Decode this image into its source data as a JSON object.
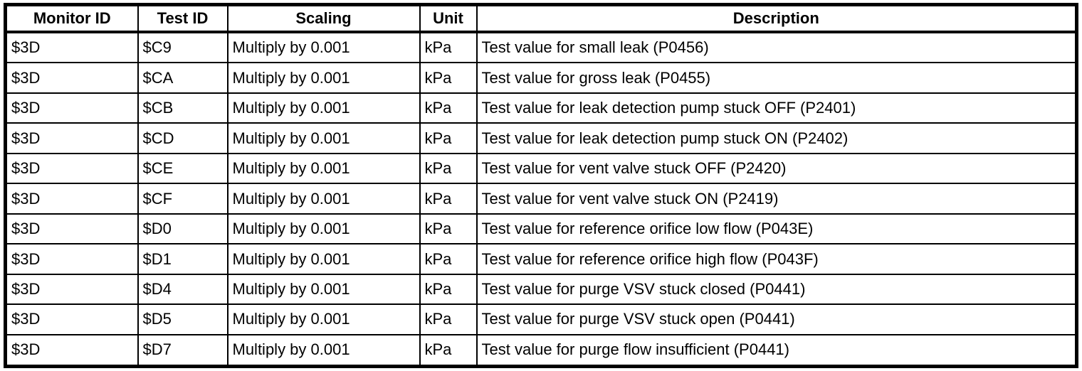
{
  "colors": {
    "border": "#000000",
    "text": "#000000",
    "background": "#ffffff"
  },
  "table": {
    "columns": [
      {
        "key": "monitor-id",
        "label": "Monitor ID"
      },
      {
        "key": "test-id",
        "label": "Test ID"
      },
      {
        "key": "scaling",
        "label": "Scaling"
      },
      {
        "key": "unit",
        "label": "Unit"
      },
      {
        "key": "description",
        "label": "Description"
      }
    ],
    "rows": [
      [
        "$3D",
        "$C9",
        "Multiply by 0.001",
        "kPa",
        "Test value for small leak (P0456)"
      ],
      [
        "$3D",
        "$CA",
        "Multiply by 0.001",
        "kPa",
        "Test value for gross leak (P0455)"
      ],
      [
        "$3D",
        "$CB",
        "Multiply by 0.001",
        "kPa",
        "Test value for leak detection pump stuck OFF (P2401)"
      ],
      [
        "$3D",
        "$CD",
        "Multiply by 0.001",
        "kPa",
        "Test value for leak detection pump stuck ON (P2402)"
      ],
      [
        "$3D",
        "$CE",
        "Multiply by 0.001",
        "kPa",
        "Test value for vent valve stuck OFF (P2420)"
      ],
      [
        "$3D",
        "$CF",
        "Multiply by 0.001",
        "kPa",
        "Test value for vent valve stuck ON (P2419)"
      ],
      [
        "$3D",
        "$D0",
        "Multiply by 0.001",
        "kPa",
        "Test value for reference orifice low flow (P043E)"
      ],
      [
        "$3D",
        "$D1",
        "Multiply by 0.001",
        "kPa",
        "Test value for reference orifice high flow (P043F)"
      ],
      [
        "$3D",
        "$D4",
        "Multiply by 0.001",
        "kPa",
        "Test value for purge VSV stuck closed (P0441)"
      ],
      [
        "$3D",
        "$D5",
        "Multiply by 0.001",
        "kPa",
        "Test value for purge VSV stuck open (P0441)"
      ],
      [
        "$3D",
        "$D7",
        "Multiply by 0.001",
        "kPa",
        "Test value for purge flow insufficient (P0441)"
      ]
    ]
  }
}
